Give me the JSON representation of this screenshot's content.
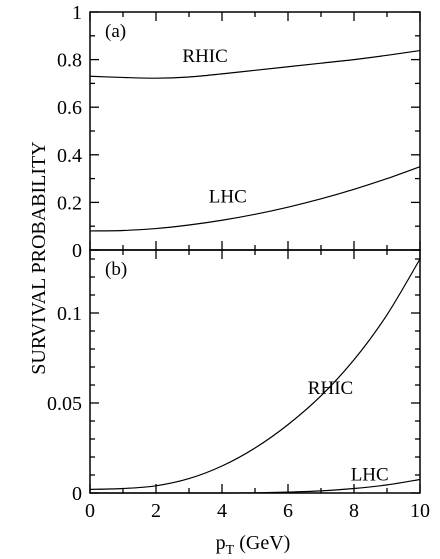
{
  "chart_data": [
    {
      "type": "line",
      "panel_label": "(a)",
      "xlim": [
        0,
        10
      ],
      "ylim": [
        0,
        1
      ],
      "x_ticks": [
        "0",
        "2",
        "4",
        "6",
        "8",
        "10"
      ],
      "y_ticks": [
        "0",
        "0.2",
        "0.4",
        "0.6",
        "0.8",
        "1"
      ],
      "grid": false,
      "series": [
        {
          "name": "RHIC",
          "x": [
            0,
            1,
            2,
            3,
            4,
            5,
            6,
            7,
            8,
            9,
            10
          ],
          "y": [
            0.73,
            0.725,
            0.722,
            0.727,
            0.74,
            0.755,
            0.77,
            0.785,
            0.8,
            0.818,
            0.838
          ]
        },
        {
          "name": "LHC",
          "x": [
            0,
            1,
            2,
            3,
            4,
            5,
            6,
            7,
            8,
            9,
            10
          ],
          "y": [
            0.08,
            0.082,
            0.09,
            0.105,
            0.125,
            0.15,
            0.18,
            0.215,
            0.255,
            0.3,
            0.35
          ]
        }
      ]
    },
    {
      "type": "line",
      "panel_label": "(b)",
      "xlim": [
        0,
        10
      ],
      "ylim": [
        0,
        0.135
      ],
      "x_ticks": [
        "0",
        "2",
        "4",
        "6",
        "8",
        "10"
      ],
      "y_ticks": [
        "0",
        "0.05",
        "0.1"
      ],
      "grid": false,
      "series": [
        {
          "name": "RHIC",
          "x": [
            0,
            1,
            2,
            3,
            4,
            5,
            6,
            7,
            8,
            9,
            10
          ],
          "y": [
            0.002,
            0.0025,
            0.004,
            0.008,
            0.015,
            0.025,
            0.038,
            0.054,
            0.074,
            0.099,
            0.13
          ]
        },
        {
          "name": "LHC",
          "x": [
            0,
            1,
            2,
            3,
            4,
            5,
            6,
            7,
            8,
            9,
            10
          ],
          "y": [
            0,
            0,
            0,
            0,
            0,
            0.0001,
            0.0005,
            0.0012,
            0.0025,
            0.0045,
            0.0075
          ]
        }
      ]
    }
  ],
  "axes": {
    "ylabel": "SURVIVAL PROBABILITY",
    "xlabel_main": "p",
    "xlabel_sub": "T",
    "xlabel_unit": " (GeV)"
  }
}
